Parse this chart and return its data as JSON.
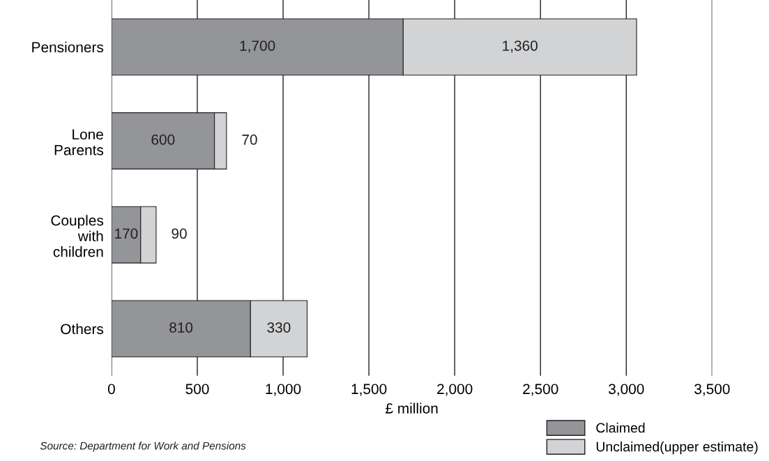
{
  "chart_data": {
    "type": "bar",
    "orientation": "horizontal",
    "stacked": true,
    "categories": [
      "Pensioners",
      "Lone\nParents",
      "Couples\nwith\nchildren",
      "Others"
    ],
    "series": [
      {
        "name": "Claimed",
        "color": "#939598",
        "values": [
          1700,
          600,
          170,
          810
        ]
      },
      {
        "name": "Unclaimed(upper estimate)",
        "color": "#d1d3d4",
        "values": [
          1360,
          70,
          90,
          330
        ]
      }
    ],
    "xlim": [
      0,
      3500
    ],
    "xticks": [
      0,
      500,
      {
        "value": 1000,
        "label": "1,000"
      },
      {
        "value": 1500,
        "label": "1,500"
      },
      {
        "value": 2000,
        "label": "2,000"
      },
      {
        "value": 2500,
        "label": "2,500"
      },
      {
        "value": 3000,
        "label": "3,000"
      },
      {
        "value": 3500,
        "label": "3,500"
      }
    ],
    "value_labels": [
      [
        "1,700",
        "600",
        "170",
        "810"
      ],
      [
        "1,360",
        "70",
        "90",
        "330"
      ]
    ],
    "xlabel": "£ million",
    "grid": "x",
    "legend": "bottom right",
    "annotations": [
      "Source: Department for Work and Pensions"
    ]
  }
}
